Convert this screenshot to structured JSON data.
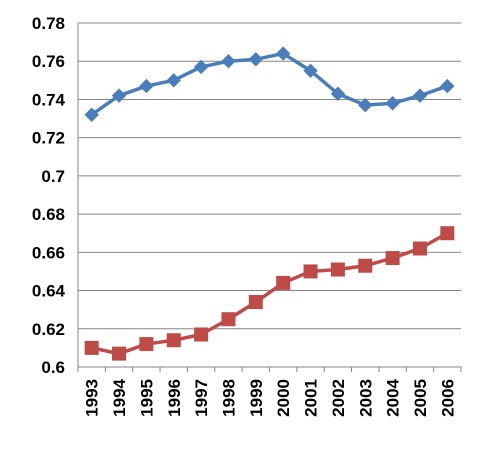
{
  "chart_data": {
    "type": "line",
    "title": "",
    "xlabel": "",
    "ylabel": "",
    "x": [
      "1993",
      "1994",
      "1995",
      "1996",
      "1997",
      "1998",
      "1999",
      "2000",
      "2001",
      "2002",
      "2003",
      "2004",
      "2005",
      "2006"
    ],
    "y_ticks": [
      "0.6",
      "0.62",
      "0.64",
      "0.66",
      "0.68",
      "0.7",
      "0.72",
      "0.74",
      "0.76",
      "0.78"
    ],
    "ylim": [
      0.6,
      0.78
    ],
    "grid": "horizontal",
    "legend": "none",
    "series": [
      {
        "marker": "diamond",
        "color": "#4A7EBB",
        "values": [
          0.732,
          0.742,
          0.747,
          0.75,
          0.757,
          0.76,
          0.761,
          0.764,
          0.755,
          0.743,
          0.737,
          0.738,
          0.742,
          0.747
        ]
      },
      {
        "marker": "square",
        "color": "#BE4B48",
        "values": [
          0.61,
          0.607,
          0.612,
          0.614,
          0.617,
          0.625,
          0.634,
          0.644,
          0.65,
          0.651,
          0.653,
          0.657,
          0.662,
          0.67
        ]
      }
    ]
  }
}
